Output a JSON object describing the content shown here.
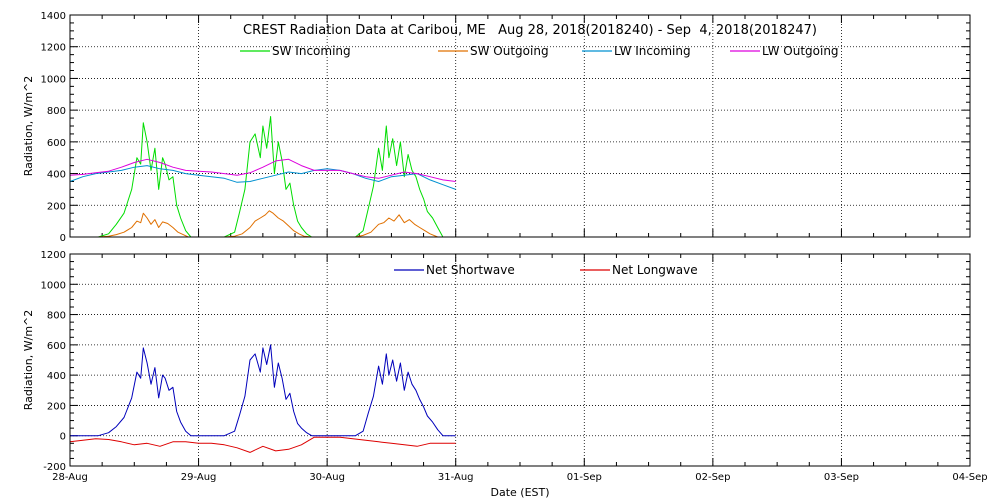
{
  "title": "CREST Radiation Data at Caribou, ME   Aug 28, 2018(2018240) - Sep  4, 2018(2018247)",
  "xlabel": "Date (EST)",
  "x_ticks": [
    "28-Aug",
    "29-Aug",
    "30-Aug",
    "31-Aug",
    "01-Sep",
    "02-Sep",
    "03-Sep",
    "04-Sep"
  ],
  "chart_data": [
    {
      "type": "line",
      "ylabel": "Radiation, W/m^2",
      "ylim": [
        0,
        1400
      ],
      "y_ticks": [
        0,
        200,
        400,
        600,
        800,
        1000,
        1200,
        1400
      ],
      "xlim_days": [
        0,
        7
      ],
      "grid": true,
      "legend_position": "top",
      "series": [
        {
          "name": "SW Incoming",
          "color": "#00dd00",
          "x": [
            0.22,
            0.3,
            0.36,
            0.42,
            0.48,
            0.52,
            0.55,
            0.57,
            0.6,
            0.63,
            0.66,
            0.69,
            0.72,
            0.74,
            0.77,
            0.8,
            0.83,
            0.86,
            0.9,
            0.94,
            1.2,
            1.28,
            1.32,
            1.36,
            1.4,
            1.44,
            1.48,
            1.5,
            1.53,
            1.56,
            1.59,
            1.62,
            1.65,
            1.68,
            1.71,
            1.74,
            1.77,
            1.8,
            1.84,
            1.88,
            1.92,
            2.22,
            2.28,
            2.32,
            2.36,
            2.4,
            2.43,
            2.46,
            2.48,
            2.51,
            2.54,
            2.57,
            2.6,
            2.63,
            2.66,
            2.69,
            2.72,
            2.75,
            2.78,
            2.82,
            2.86,
            2.9
          ],
          "values": [
            0,
            20,
            80,
            150,
            300,
            500,
            460,
            720,
            600,
            420,
            560,
            300,
            500,
            460,
            360,
            380,
            200,
            120,
            40,
            0,
            0,
            30,
            160,
            300,
            600,
            650,
            500,
            700,
            560,
            760,
            400,
            600,
            480,
            300,
            340,
            200,
            100,
            60,
            20,
            0,
            0,
            0,
            40,
            180,
            320,
            560,
            420,
            700,
            500,
            620,
            450,
            600,
            380,
            520,
            420,
            380,
            300,
            240,
            160,
            120,
            60,
            0
          ]
        },
        {
          "name": "SW Outgoing",
          "color": "#e07000",
          "x": [
            0.22,
            0.3,
            0.36,
            0.42,
            0.48,
            0.52,
            0.55,
            0.57,
            0.6,
            0.63,
            0.66,
            0.69,
            0.72,
            0.76,
            0.8,
            0.84,
            0.88,
            0.92,
            1.2,
            1.28,
            1.34,
            1.4,
            1.44,
            1.48,
            1.52,
            1.55,
            1.58,
            1.62,
            1.66,
            1.7,
            1.74,
            1.78,
            1.82,
            1.88,
            2.22,
            2.28,
            2.34,
            2.4,
            2.44,
            2.48,
            2.52,
            2.56,
            2.6,
            2.64,
            2.68,
            2.72,
            2.76,
            2.8,
            2.86
          ],
          "values": [
            0,
            5,
            15,
            30,
            60,
            100,
            90,
            150,
            120,
            80,
            110,
            60,
            95,
            85,
            60,
            30,
            15,
            0,
            0,
            5,
            20,
            60,
            100,
            120,
            140,
            165,
            150,
            120,
            100,
            70,
            40,
            20,
            5,
            0,
            0,
            10,
            30,
            80,
            90,
            120,
            100,
            140,
            90,
            110,
            80,
            60,
            40,
            20,
            0
          ],
          "y_note": ""
        },
        {
          "name": "LW Incoming",
          "color": "#0090d0",
          "x": [
            0,
            0.1,
            0.2,
            0.3,
            0.4,
            0.5,
            0.6,
            0.7,
            0.8,
            0.9,
            1.0,
            1.1,
            1.2,
            1.3,
            1.4,
            1.5,
            1.6,
            1.7,
            1.8,
            1.9,
            2.0,
            2.1,
            2.2,
            2.3,
            2.4,
            2.5,
            2.6,
            2.7,
            2.8,
            2.9,
            3.0
          ],
          "values": [
            350,
            380,
            400,
            410,
            420,
            440,
            450,
            430,
            420,
            400,
            390,
            380,
            370,
            345,
            350,
            370,
            390,
            410,
            400,
            420,
            430,
            420,
            400,
            370,
            350,
            380,
            390,
            400,
            360,
            330,
            300
          ]
        },
        {
          "name": "LW Outgoing",
          "color": "#dd00dd",
          "x": [
            0,
            0.1,
            0.2,
            0.3,
            0.4,
            0.5,
            0.6,
            0.7,
            0.8,
            0.9,
            1.0,
            1.1,
            1.2,
            1.3,
            1.4,
            1.5,
            1.6,
            1.7,
            1.8,
            1.9,
            2.0,
            2.1,
            2.2,
            2.3,
            2.4,
            2.5,
            2.6,
            2.7,
            2.8,
            2.9,
            3.0
          ],
          "values": [
            390,
            395,
            405,
            415,
            440,
            470,
            490,
            470,
            440,
            420,
            415,
            410,
            400,
            390,
            405,
            440,
            480,
            490,
            450,
            420,
            420,
            420,
            400,
            380,
            370,
            390,
            410,
            400,
            380,
            360,
            350
          ]
        }
      ]
    },
    {
      "type": "line",
      "ylabel": "Radiation, W/m^2",
      "ylim": [
        -200,
        1200
      ],
      "y_ticks": [
        -200,
        0,
        200,
        400,
        600,
        800,
        1000,
        1200
      ],
      "xlim_days": [
        0,
        7
      ],
      "grid": true,
      "legend_position": "top",
      "series": [
        {
          "name": "Net Shortwave",
          "color": "#0000bb",
          "x": [
            0,
            0.22,
            0.3,
            0.36,
            0.42,
            0.48,
            0.52,
            0.55,
            0.57,
            0.6,
            0.63,
            0.66,
            0.69,
            0.72,
            0.74,
            0.77,
            0.8,
            0.83,
            0.86,
            0.9,
            0.94,
            1.2,
            1.28,
            1.32,
            1.36,
            1.4,
            1.44,
            1.48,
            1.5,
            1.53,
            1.56,
            1.59,
            1.62,
            1.65,
            1.68,
            1.71,
            1.74,
            1.77,
            1.8,
            1.84,
            1.88,
            1.92,
            2.22,
            2.28,
            2.32,
            2.36,
            2.4,
            2.43,
            2.46,
            2.48,
            2.51,
            2.54,
            2.57,
            2.6,
            2.63,
            2.66,
            2.69,
            2.72,
            2.75,
            2.78,
            2.82,
            2.86,
            2.9,
            3.0
          ],
          "values": [
            0,
            0,
            20,
            60,
            120,
            250,
            420,
            380,
            580,
            480,
            340,
            450,
            250,
            400,
            380,
            300,
            320,
            160,
            90,
            30,
            0,
            0,
            30,
            140,
            260,
            500,
            540,
            420,
            580,
            470,
            600,
            320,
            480,
            380,
            240,
            280,
            160,
            80,
            50,
            20,
            0,
            0,
            0,
            30,
            150,
            260,
            460,
            340,
            540,
            400,
            500,
            360,
            480,
            300,
            420,
            340,
            300,
            240,
            190,
            130,
            90,
            40,
            0,
            0
          ]
        },
        {
          "name": "Net Longwave",
          "color": "#dd0000",
          "x": [
            0,
            0.1,
            0.2,
            0.3,
            0.4,
            0.5,
            0.6,
            0.7,
            0.8,
            0.9,
            1.0,
            1.1,
            1.2,
            1.3,
            1.4,
            1.5,
            1.6,
            1.7,
            1.8,
            1.9,
            2.0,
            2.1,
            2.2,
            2.3,
            2.4,
            2.5,
            2.6,
            2.7,
            2.8,
            2.9,
            3.0
          ],
          "values": [
            -40,
            -30,
            -20,
            -25,
            -40,
            -60,
            -50,
            -70,
            -40,
            -40,
            -50,
            -50,
            -60,
            -80,
            -110,
            -70,
            -100,
            -90,
            -60,
            -10,
            -10,
            -10,
            -20,
            -30,
            -40,
            -50,
            -60,
            -70,
            -50,
            -50,
            -50
          ]
        }
      ]
    }
  ]
}
